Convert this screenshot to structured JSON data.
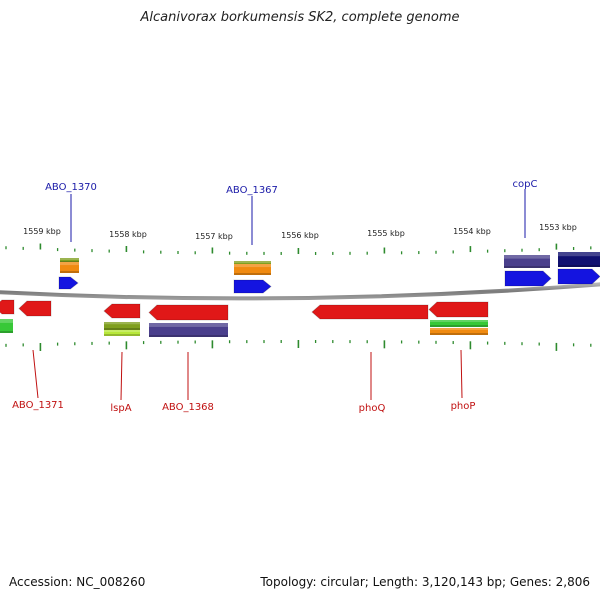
{
  "title": "Alcanivorax borkumensis SK2, complete genome",
  "footer": {
    "accession": "Accession: NC_008260",
    "summary": "Topology: circular; Length: 3,120,143 bp; Genes: 2,806"
  },
  "colors": {
    "backbone": "#8a8a8a",
    "tick": "#2e8b2e",
    "label_blue": "#1a1aa8",
    "label_red": "#c01010",
    "gene_red": "#e01818",
    "gene_blue": "#1414e0",
    "gene_orange": "#f08a10",
    "gene_purple": "#4a3f8c",
    "gene_navy": "#101070",
    "gene_green": "#38c838",
    "gene_olive": "#7f9f1f"
  },
  "scale_labels": [
    "1559 kbp",
    "1558 kbp",
    "1557 kbp",
    "1556 kbp",
    "1555 kbp",
    "1554 kbp",
    "1553 kbp"
  ],
  "top_labels": [
    "ABO_1370",
    "ABO_1367",
    "copC"
  ],
  "bottom_labels": [
    "ABO_1371",
    "lspA",
    "ABO_1368",
    "phoQ",
    "phoP"
  ]
}
